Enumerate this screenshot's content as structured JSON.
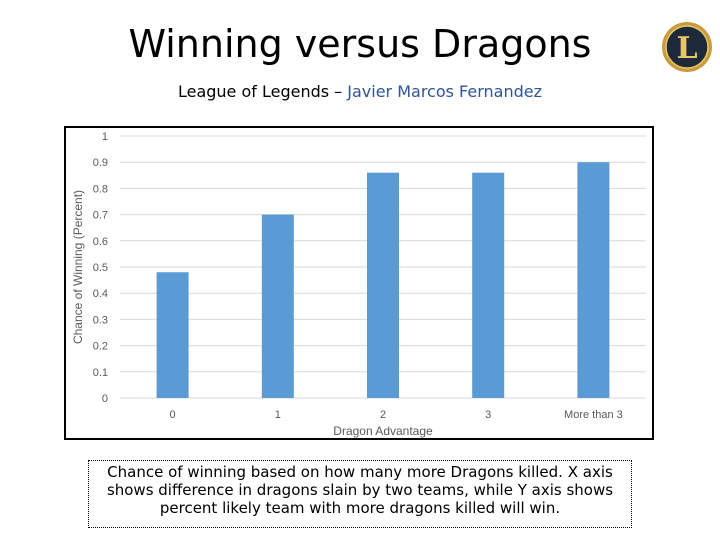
{
  "slide": {
    "title": "Winning versus Dragons",
    "subtitle_prefix": "League of Legends – ",
    "subtitle_author": "Javier Marcos Fernandez",
    "caption": "Chance of winning based on how many more Dragons killed. X axis shows  difference in dragons slain by two teams, while Y axis shows percent likely team with more dragons killed will win."
  },
  "logo": {
    "letter": "L",
    "icon": "league-of-legends-logo-icon"
  },
  "colors": {
    "bar": "#5b9bd5",
    "grid": "#d9d9d9",
    "tick_text": "#595959",
    "author": "#2e5597"
  },
  "chart_data": {
    "type": "bar",
    "categories": [
      "0",
      "1",
      "2",
      "3",
      "More than 3"
    ],
    "values": [
      0.48,
      0.7,
      0.86,
      0.86,
      0.9
    ],
    "title": "",
    "xlabel": "Dragon Advantage",
    "ylabel": "Chance of Winning (Percent)",
    "ylim": [
      0,
      1
    ],
    "yticks": [
      "0",
      "0.1",
      "0.2",
      "0.3",
      "0.4",
      "0.5",
      "0.6",
      "0.7",
      "0.8",
      "0.9",
      "1"
    ],
    "grid": true
  }
}
